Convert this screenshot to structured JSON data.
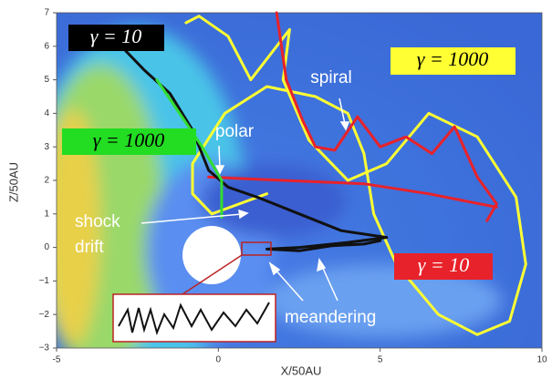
{
  "chart_data": {
    "type": "trajectory",
    "xlabel": "X/50AU",
    "ylabel": "Z/50AU",
    "xlim": [
      -5,
      10
    ],
    "ylim": [
      -3,
      7
    ],
    "xticks": [
      -5,
      0,
      5,
      10
    ],
    "yticks": [
      {
        "value": -3,
        "label": "−3"
      },
      {
        "value": -2,
        "label": "−2"
      },
      {
        "value": -1,
        "label": "−1"
      },
      0,
      1,
      2,
      3,
      4,
      5,
      6,
      7
    ],
    "series": [
      {
        "color": "#ffff33",
        "x": [
          -1,
          -0.6,
          0.3,
          1.0,
          2.2,
          2.0,
          2.8,
          4.0,
          5.2,
          6.5,
          8.0,
          9.2,
          9.5,
          9.0,
          8.0,
          6.8,
          5.5,
          4.8,
          4.5,
          4.0,
          3.0,
          1.5,
          0.2,
          -0.8,
          -0.8,
          -0.2,
          1.5
        ],
        "y": [
          6.7,
          6.9,
          6.3,
          5.0,
          6.5,
          5.0,
          3.2,
          2.0,
          2.5,
          4.0,
          3.3,
          1.5,
          -0.5,
          -2.2,
          -2.6,
          -2.0,
          -0.5,
          1.0,
          2.8,
          4.0,
          4.5,
          4.8,
          4.0,
          2.5,
          1.6,
          1.0,
          1.6
        ]
      },
      {
        "color": "#e8222a",
        "x": [
          1.8,
          2.1,
          2.6,
          3.0,
          3.6,
          4.3,
          5.0,
          5.8,
          6.6,
          7.3,
          8.0,
          8.6,
          8.3,
          null,
          -0.3,
          2.0,
          4.5,
          6.5,
          8.6
        ],
        "y": [
          7.0,
          5.0,
          3.8,
          3.0,
          2.9,
          3.9,
          3.0,
          3.3,
          2.8,
          3.6,
          2.1,
          1.3,
          0.8,
          null,
          2.1,
          2.0,
          1.9,
          1.6,
          1.2
        ]
      },
      {
        "color": "#111111",
        "x": [
          -2.9,
          -2.3,
          -1.5,
          -0.8,
          -0.3,
          0.3,
          1.2,
          2.5,
          3.8,
          5.2,
          4.0,
          2.5,
          1.5,
          2.5,
          3.5,
          4.5,
          5.0
        ],
        "y": [
          5.9,
          5.3,
          4.6,
          3.5,
          2.3,
          1.8,
          1.5,
          1.0,
          0.5,
          0.3,
          0.15,
          0.0,
          -0.05,
          -0.1,
          0.05,
          0.1,
          0.2
        ]
      },
      {
        "color": "#33dd33",
        "x": [
          -1.9,
          -1.2,
          -0.5,
          0.1,
          0.1
        ],
        "y": [
          5.0,
          4.0,
          3.0,
          2.0,
          0.9
        ]
      }
    ],
    "annotations": [
      "γ = 10",
      "γ = 1000",
      "γ = 1000",
      "γ = 10",
      "spiral",
      "polar",
      "shock",
      "drift",
      "meandering"
    ]
  }
}
